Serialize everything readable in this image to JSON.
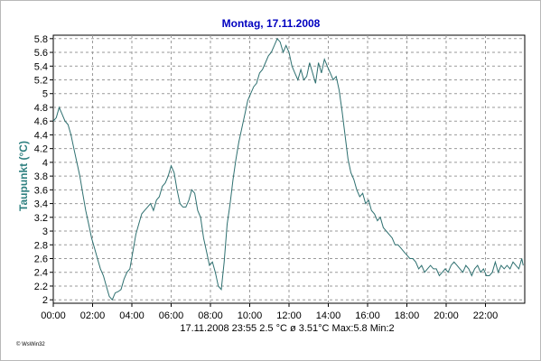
{
  "chart_data": {
    "type": "line",
    "title": "Montag, 17.11.2008",
    "ylabel": "Taupunkt  (°C)",
    "xlabel": "",
    "x_unit": "hours",
    "xlim": [
      0,
      24
    ],
    "ylim": [
      1.95,
      5.85
    ],
    "y_ticks": [
      2,
      2.2,
      2.4,
      2.6,
      2.8,
      3,
      3.2,
      3.4,
      3.6,
      3.8,
      4,
      4.2,
      4.4,
      4.6,
      4.8,
      5,
      5.2,
      5.4,
      5.6,
      5.8
    ],
    "y_tick_labels": [
      "2",
      "2.2",
      "2.4",
      "2.6",
      "2.8",
      "3",
      "3.2",
      "3.4",
      "3.6",
      "3.8",
      "4",
      "4.2",
      "4.4",
      "4.6",
      "4.8",
      "5",
      "5.2",
      "5.4",
      "5.6",
      "5.8"
    ],
    "x_ticks": [
      0,
      2,
      4,
      6,
      8,
      10,
      12,
      14,
      16,
      18,
      20,
      22
    ],
    "x_tick_labels": [
      "00:00",
      "02:00",
      "04:00",
      "06:00",
      "08:00",
      "10:00",
      "12:00",
      "14:00",
      "16:00",
      "18:00",
      "20:00",
      "22:00"
    ],
    "grid": true,
    "series": [
      {
        "color": "#2e7070",
        "x": [
          0,
          0.15,
          0.3,
          0.45,
          0.6,
          0.75,
          0.9,
          1.05,
          1.2,
          1.35,
          1.5,
          1.65,
          1.8,
          1.95,
          2.1,
          2.25,
          2.4,
          2.55,
          2.7,
          2.85,
          3.0,
          3.15,
          3.3,
          3.45,
          3.6,
          3.75,
          3.9,
          4.05,
          4.2,
          4.35,
          4.5,
          4.65,
          4.8,
          4.95,
          5.1,
          5.25,
          5.4,
          5.55,
          5.7,
          5.85,
          6.0,
          6.15,
          6.3,
          6.45,
          6.6,
          6.75,
          6.9,
          7.05,
          7.2,
          7.35,
          7.5,
          7.65,
          7.8,
          7.95,
          8.1,
          8.25,
          8.4,
          8.55,
          8.7,
          8.85,
          9.0,
          9.15,
          9.3,
          9.45,
          9.6,
          9.75,
          9.9,
          10.05,
          10.2,
          10.35,
          10.5,
          10.65,
          10.8,
          10.95,
          11.1,
          11.25,
          11.4,
          11.55,
          11.7,
          11.85,
          12.0,
          12.15,
          12.3,
          12.45,
          12.6,
          12.75,
          12.9,
          13.05,
          13.2,
          13.35,
          13.5,
          13.65,
          13.8,
          13.95,
          14.1,
          14.25,
          14.4,
          14.55,
          14.7,
          14.85,
          15.0,
          15.15,
          15.3,
          15.45,
          15.6,
          15.75,
          15.9,
          16.05,
          16.2,
          16.35,
          16.5,
          16.65,
          16.8,
          16.95,
          17.1,
          17.25,
          17.4,
          17.55,
          17.7,
          17.85,
          18.0,
          18.15,
          18.3,
          18.45,
          18.6,
          18.75,
          18.9,
          19.05,
          19.2,
          19.35,
          19.5,
          19.65,
          19.8,
          19.95,
          20.1,
          20.25,
          20.4,
          20.55,
          20.7,
          20.85,
          21.0,
          21.15,
          21.3,
          21.45,
          21.6,
          21.75,
          21.9,
          22.05,
          22.2,
          22.35,
          22.5,
          22.65,
          22.8,
          22.95,
          23.1,
          23.25,
          23.4,
          23.55,
          23.7,
          23.85,
          23.92
        ],
        "y": [
          4.6,
          4.65,
          4.8,
          4.7,
          4.6,
          4.55,
          4.4,
          4.2,
          4.0,
          3.8,
          3.55,
          3.3,
          3.1,
          2.9,
          2.75,
          2.6,
          2.45,
          2.35,
          2.2,
          2.05,
          2.0,
          2.1,
          2.12,
          2.15,
          2.3,
          2.4,
          2.45,
          2.7,
          2.95,
          3.1,
          3.25,
          3.3,
          3.35,
          3.4,
          3.3,
          3.45,
          3.5,
          3.65,
          3.7,
          3.8,
          3.95,
          3.85,
          3.6,
          3.4,
          3.35,
          3.35,
          3.45,
          3.6,
          3.55,
          3.3,
          3.2,
          2.9,
          2.7,
          2.5,
          2.55,
          2.4,
          2.2,
          2.15,
          2.55,
          3.1,
          3.4,
          3.75,
          4.05,
          4.3,
          4.5,
          4.7,
          4.9,
          5.0,
          5.1,
          5.15,
          5.3,
          5.35,
          5.45,
          5.55,
          5.6,
          5.7,
          5.8,
          5.75,
          5.6,
          5.7,
          5.6,
          5.4,
          5.3,
          5.2,
          5.35,
          5.2,
          5.25,
          5.45,
          5.3,
          5.15,
          5.45,
          5.3,
          5.5,
          5.4,
          5.3,
          5.2,
          5.25,
          5.05,
          4.75,
          4.4,
          4.05,
          3.85,
          3.75,
          3.6,
          3.5,
          3.55,
          3.4,
          3.45,
          3.3,
          3.25,
          3.15,
          3.2,
          3.05,
          3.0,
          2.95,
          2.9,
          2.8,
          2.8,
          2.75,
          2.7,
          2.65,
          2.6,
          2.6,
          2.55,
          2.45,
          2.5,
          2.4,
          2.45,
          2.5,
          2.45,
          2.45,
          2.35,
          2.4,
          2.45,
          2.4,
          2.5,
          2.55,
          2.5,
          2.45,
          2.4,
          2.5,
          2.45,
          2.35,
          2.45,
          2.5,
          2.4,
          2.45,
          2.35,
          2.35,
          2.4,
          2.55,
          2.4,
          2.5,
          2.45,
          2.5,
          2.45,
          2.55,
          2.5,
          2.45,
          2.6,
          2.5
        ]
      }
    ]
  },
  "footer": {
    "text": "17.11.2008   23:55    2.5 °C    ø 3.51°C  Max:5.8  Min:2"
  },
  "brand": {
    "text": "© WsWin32"
  }
}
